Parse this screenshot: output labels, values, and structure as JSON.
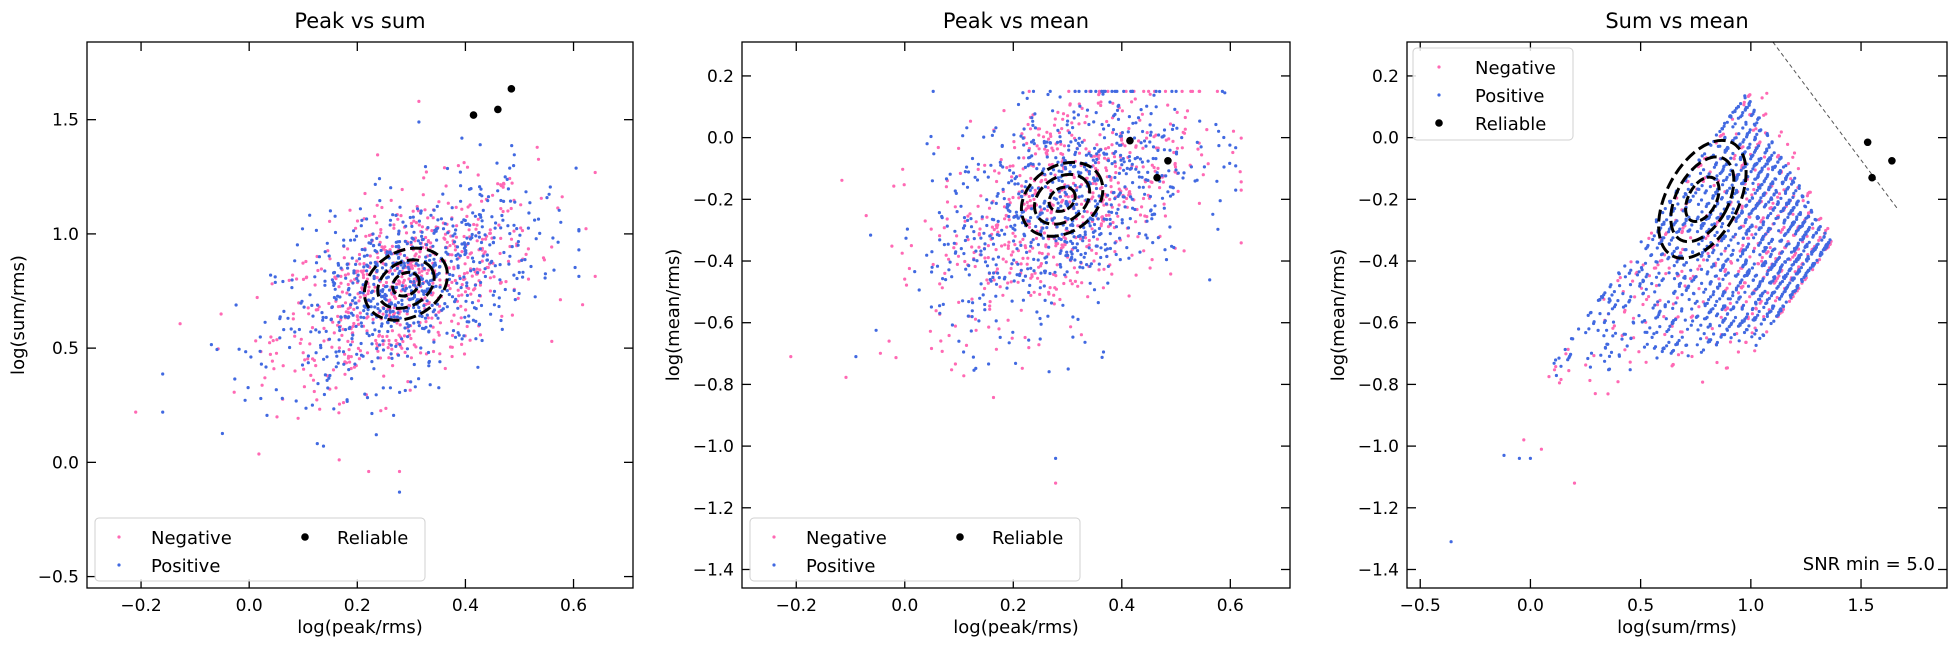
{
  "chart_data": [
    {
      "type": "scatter",
      "title": "Peak vs sum",
      "xlabel": "log(peak/rms)",
      "ylabel": "log(sum/rms)",
      "xlim": [
        -0.3,
        0.71
      ],
      "ylim": [
        -0.55,
        1.84
      ],
      "xticks": [
        -0.2,
        0.0,
        0.2,
        0.4,
        0.6
      ],
      "xtick_labels": [
        "−0.2",
        "0.0",
        "0.2",
        "0.4",
        "0.6"
      ],
      "yticks": [
        -0.5,
        0.0,
        0.5,
        1.0,
        1.5
      ],
      "ytick_labels": [
        "−0.5",
        "0.0",
        "0.5",
        "1.0",
        "1.5"
      ],
      "legend": {
        "placement": "lower-left",
        "columns": 2,
        "entries": [
          "Negative",
          "Positive",
          "Reliable"
        ]
      },
      "series": [
        {
          "name": "Negative",
          "color": "#ff69b4",
          "marker": "small-dot",
          "distribution": {
            "n": 650,
            "mean": [
              0.29,
              0.77
            ],
            "std": [
              0.12,
              0.22
            ],
            "corr": 0.5,
            "x_range": [
              -0.21,
              0.64
            ],
            "y_range": [
              -0.04,
              1.58
            ]
          }
        },
        {
          "name": "Positive",
          "color": "#4169e1",
          "marker": "small-dot",
          "distribution": {
            "n": 750,
            "mean": [
              0.29,
              0.77
            ],
            "std": [
              0.12,
              0.22
            ],
            "corr": 0.5,
            "x_range": [
              -0.16,
              0.61
            ],
            "y_range": [
              -0.13,
              1.49
            ]
          }
        },
        {
          "name": "Reliable",
          "color": "#000000",
          "marker": "dot",
          "points": [
            [
              0.415,
              1.52
            ],
            [
              0.46,
              1.545
            ],
            [
              0.485,
              1.635
            ]
          ]
        }
      ],
      "contours": {
        "center": [
          0.29,
          0.78
        ],
        "style": "dashed",
        "color": "#000000",
        "levels": 3
      }
    },
    {
      "type": "scatter",
      "title": "Peak vs mean",
      "xlabel": "log(peak/rms)",
      "ylabel": "log(mean/rms)",
      "xlim": [
        -0.3,
        0.71
      ],
      "ylim": [
        -1.46,
        0.31
      ],
      "xticks": [
        -0.2,
        0.0,
        0.2,
        0.4,
        0.6
      ],
      "xtick_labels": [
        "−0.2",
        "0.0",
        "0.2",
        "0.4",
        "0.6"
      ],
      "yticks": [
        -1.4,
        -1.2,
        -1.0,
        -0.8,
        -0.6,
        -0.4,
        -0.2,
        0.0,
        0.2
      ],
      "ytick_labels": [
        "−1.4",
        "−1.2",
        "−1.0",
        "−0.8",
        "−0.6",
        "−0.4",
        "−0.2",
        "0.0",
        "0.2"
      ],
      "legend": {
        "placement": "lower-left",
        "columns": 2,
        "entries": [
          "Negative",
          "Positive",
          "Reliable"
        ]
      },
      "series": [
        {
          "name": "Negative",
          "color": "#ff69b4",
          "marker": "small-dot",
          "distribution": {
            "n": 650,
            "mean": [
              0.29,
              -0.21
            ],
            "std": [
              0.12,
              0.2
            ],
            "corr": 0.45,
            "x_range": [
              -0.21,
              0.62
            ],
            "y_range": [
              -1.12,
              0.15
            ]
          }
        },
        {
          "name": "Positive",
          "color": "#4169e1",
          "marker": "small-dot",
          "distribution": {
            "n": 750,
            "mean": [
              0.29,
              -0.21
            ],
            "std": [
              0.12,
              0.2
            ],
            "corr": 0.45,
            "x_range": [
              -0.09,
              0.61
            ],
            "y_range": [
              -1.04,
              0.15
            ]
          }
        },
        {
          "name": "Reliable",
          "color": "#000000",
          "marker": "dot",
          "points": [
            [
              0.415,
              -0.01
            ],
            [
              0.465,
              -0.13
            ],
            [
              0.485,
              -0.075
            ]
          ]
        }
      ],
      "contours": {
        "center": [
          0.29,
          -0.2
        ],
        "style": "dashed",
        "color": "#000000",
        "levels": 3
      }
    },
    {
      "type": "scatter",
      "title": "Sum vs mean",
      "xlabel": "log(sum/rms)",
      "ylabel": "log(mean/rms)",
      "xlim": [
        -0.56,
        1.89
      ],
      "ylim": [
        -1.46,
        0.31
      ],
      "xticks": [
        -0.5,
        0.0,
        0.5,
        1.0,
        1.5
      ],
      "xtick_labels": [
        "−0.5",
        "0.0",
        "0.5",
        "1.0",
        "1.5"
      ],
      "yticks": [
        -1.4,
        -1.2,
        -1.0,
        -0.8,
        -0.6,
        -0.4,
        -0.2,
        0.0,
        0.2
      ],
      "ytick_labels": [
        "−1.4",
        "−1.2",
        "−1.0",
        "−0.8",
        "−0.6",
        "−0.4",
        "−0.2",
        "0.0",
        "0.2"
      ],
      "legend": {
        "placement": "top-left",
        "columns": 1,
        "entries": [
          "Negative",
          "Positive",
          "Reliable"
        ]
      },
      "annotation": "SNR min = 5.0",
      "series": [
        {
          "name": "Negative",
          "color": "#ff69b4",
          "marker": "small-dot",
          "structure": "diagonal-bands",
          "x_range": [
            -0.03,
            1.4
          ],
          "y_range": [
            -1.12,
            0.15
          ]
        },
        {
          "name": "Positive",
          "color": "#4169e1",
          "marker": "small-dot",
          "structure": "diagonal-bands",
          "x_range": [
            -0.36,
            1.38
          ],
          "y_range": [
            -1.31,
            0.15
          ]
        },
        {
          "name": "Reliable",
          "color": "#000000",
          "marker": "dot",
          "points": [
            [
              1.53,
              -0.015
            ],
            [
              1.55,
              -0.13
            ],
            [
              1.64,
              -0.075
            ]
          ]
        }
      ],
      "threshold_line": {
        "from": [
          1.1,
          0.31
        ],
        "to": [
          1.67,
          -0.235
        ],
        "style": "dashed",
        "color": "#555555"
      },
      "contours": {
        "center": [
          0.78,
          -0.2
        ],
        "style": "dashed",
        "color": "#000000",
        "levels": 3
      }
    }
  ]
}
